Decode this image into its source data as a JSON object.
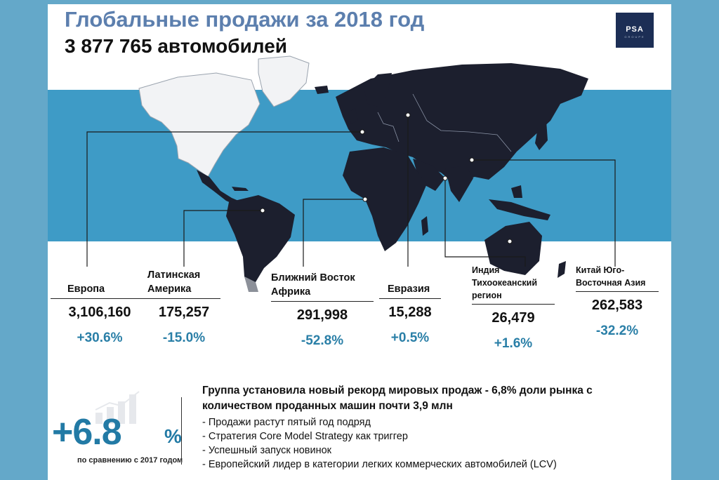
{
  "header": {
    "title": "Глобальные продажи за 2018 год",
    "subtitle": "3 877 765 автомобилей",
    "logo_text": "PSA",
    "logo_subtext": "GROUPE"
  },
  "regions": [
    {
      "name": "Европа",
      "value": "3,106,160",
      "change": "+30.6%"
    },
    {
      "name": "Латинская Америка",
      "value": "175,257",
      "change": "-15.0%"
    },
    {
      "name": "Ближний Восток Африка",
      "value": "291,998",
      "change": "-52.8%"
    },
    {
      "name": "Евразия",
      "value": "15,288",
      "change": "+0.5%"
    },
    {
      "name": "Индия Тихоокеанский регион",
      "value": "26,479",
      "change": "+1.6%"
    },
    {
      "name": "Китай Юго-Восточная Азия",
      "value": "262,583",
      "change": "-32.2%"
    }
  ],
  "share": {
    "big_value": "+6.8",
    "percent_sign": "%",
    "note": "по сравнению с 2017 годом"
  },
  "summary": {
    "headline": "Группа установила новый рекорд мировых продаж - 6,8% доли рынка с количеством проданных машин почти 3,9 млн",
    "bullets": [
      "- Продажи растут пятый год подряд",
      "- Стратегия Core Model Strategy как триггер",
      "- Успешный запуск новинок",
      "- Европейский лидер в категории легких коммерческих автомобилей (LCV)"
    ]
  },
  "colors": {
    "frame": "#64a8c9",
    "sea": "#3e9bc6",
    "land": "#1c1f2e",
    "north_america": "#f2f3f5",
    "title": "#5c7fae",
    "accent": "#227aa5"
  }
}
